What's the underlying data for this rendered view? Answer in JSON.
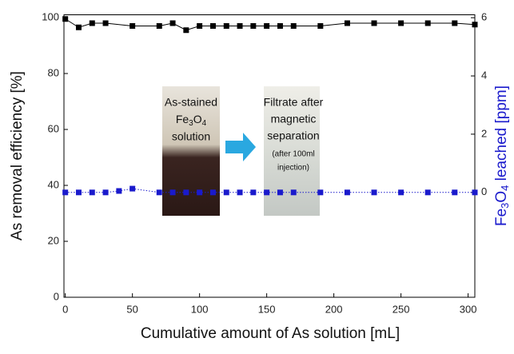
{
  "chart_data": {
    "type": "line",
    "xlabel": "Cumulative amount of As solution [mL]",
    "ylabel": "As removal efficiency [%]",
    "y2label_parts": [
      "Fe",
      "3",
      "O",
      "4",
      " leached [ppm]"
    ],
    "xlim": [
      -1,
      305
    ],
    "xticks": [
      0,
      50,
      100,
      150,
      200,
      250,
      300
    ],
    "ylim": [
      0,
      101
    ],
    "yticks": [
      0,
      20,
      40,
      60,
      80,
      100
    ],
    "y2lim": [
      -3.6,
      6.1
    ],
    "y2ticks": [
      0,
      2,
      4,
      6
    ],
    "series": [
      {
        "color": "#000000",
        "marker": "square",
        "linestyle": "solid",
        "x": [
          0,
          10,
          20,
          30,
          50,
          70,
          80,
          90,
          100,
          110,
          120,
          130,
          140,
          150,
          160,
          170,
          190,
          210,
          230,
          250,
          270,
          290,
          305
        ],
        "values": [
          99.5,
          96.5,
          98,
          98,
          97,
          97,
          98,
          95.5,
          97,
          97,
          97,
          97,
          97,
          97,
          97,
          97,
          97,
          98,
          98,
          98,
          98,
          98,
          97.5
        ]
      },
      {
        "color": "#1a1acc",
        "marker": "square",
        "linestyle": "dotted",
        "axis": "y2",
        "x": [
          0,
          10,
          20,
          30,
          40,
          50,
          70,
          80,
          90,
          100,
          110,
          120,
          130,
          140,
          150,
          160,
          170,
          190,
          210,
          230,
          250,
          270,
          290,
          305
        ],
        "values": [
          0,
          0,
          0,
          0,
          0.05,
          0.13,
          0,
          0,
          0,
          0,
          0,
          0,
          0,
          0,
          0,
          0,
          0,
          0,
          0,
          0,
          0,
          0,
          0,
          0
        ]
      }
    ],
    "annotations": {
      "left": [
        "As-stained",
        "Fe",
        "3",
        "O",
        "4",
        "solution"
      ],
      "right": [
        "Filtrate after",
        "magnetic",
        "separation",
        "(after 100ml",
        "injection)"
      ]
    }
  }
}
